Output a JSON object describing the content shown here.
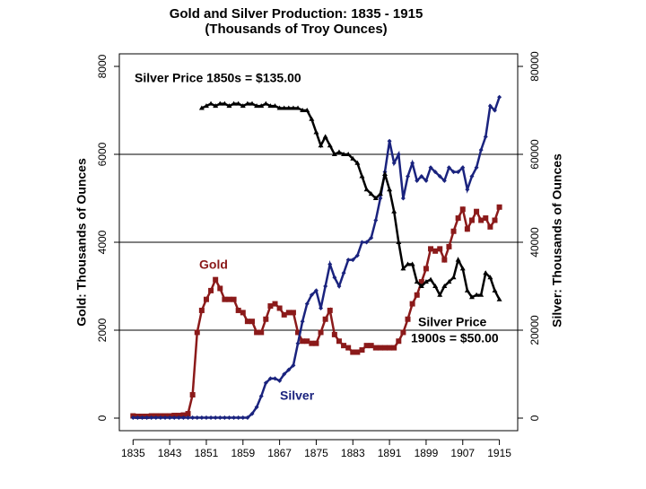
{
  "chart_data": {
    "type": "line",
    "title": "Gold and Silver Production: 1835 - 1915",
    "subtitle": "(Thousands of Troy Ounces)",
    "ylabel": "Gold: Thousands of Ounces",
    "y2label": "Silver: Thousands of Ounces",
    "annotations": [
      "Silver Price 1850s = $135.00",
      "Gold",
      "Silver Price",
      "1900s = $50.00",
      "Silver"
    ],
    "x": [
      1835,
      1836,
      1837,
      1838,
      1839,
      1840,
      1841,
      1842,
      1843,
      1844,
      1845,
      1846,
      1847,
      1848,
      1849,
      1850,
      1851,
      1852,
      1853,
      1854,
      1855,
      1856,
      1857,
      1858,
      1859,
      1860,
      1861,
      1862,
      1863,
      1864,
      1865,
      1866,
      1867,
      1868,
      1869,
      1870,
      1871,
      1872,
      1873,
      1874,
      1875,
      1876,
      1877,
      1878,
      1879,
      1880,
      1881,
      1882,
      1883,
      1884,
      1885,
      1886,
      1887,
      1888,
      1889,
      1890,
      1891,
      1892,
      1893,
      1894,
      1895,
      1896,
      1897,
      1898,
      1899,
      1900,
      1901,
      1902,
      1903,
      1904,
      1905,
      1906,
      1907,
      1908,
      1909,
      1910,
      1911,
      1912,
      1913,
      1914,
      1915
    ],
    "xlim": [
      1832,
      1919
    ],
    "xticks": [
      1835,
      1843,
      1851,
      1859,
      1867,
      1875,
      1883,
      1891,
      1899,
      1907,
      1915
    ],
    "ylim": [
      -286,
      8286
    ],
    "yticks": [
      0,
      2000,
      4000,
      6000,
      8000
    ],
    "y2lim": [
      -2860,
      82860
    ],
    "y2ticks": [
      0,
      20000,
      40000,
      60000,
      80000
    ],
    "grid": true,
    "series": [
      {
        "name": "Gold",
        "color": "#8b1a1a",
        "marker": "square",
        "axis": "y",
        "values": [
          50,
          40,
          40,
          40,
          50,
          50,
          50,
          50,
          50,
          60,
          60,
          70,
          100,
          530,
          1950,
          2450,
          2700,
          2900,
          3150,
          2950,
          2700,
          2700,
          2700,
          2450,
          2400,
          2200,
          2200,
          1950,
          1950,
          2250,
          2550,
          2600,
          2500,
          2350,
          2400,
          2400,
          1950,
          1750,
          1750,
          1700,
          1700,
          1950,
          2250,
          2450,
          1900,
          1750,
          1650,
          1600,
          1500,
          1500,
          1550,
          1650,
          1650,
          1600,
          1600,
          1600,
          1600,
          1600,
          1750,
          1950,
          2250,
          2600,
          2800,
          3100,
          3400,
          3850,
          3800,
          3850,
          3600,
          3900,
          4250,
          4550,
          4750,
          4300,
          4500,
          4700,
          4500,
          4550,
          4350,
          4500,
          4800
        ]
      },
      {
        "name": "Silver",
        "color": "#1a237e",
        "marker": "diamond",
        "axis": "y2",
        "values": [
          100,
          100,
          100,
          100,
          100,
          100,
          100,
          100,
          100,
          100,
          100,
          100,
          100,
          100,
          100,
          100,
          100,
          100,
          100,
          100,
          100,
          100,
          100,
          100,
          100,
          100,
          1000,
          2500,
          5000,
          8000,
          9000,
          9000,
          8500,
          10000,
          11000,
          12000,
          17000,
          22000,
          26000,
          28000,
          29000,
          25000,
          30000,
          35000,
          32000,
          30000,
          33000,
          36000,
          36000,
          37000,
          40000,
          40000,
          41000,
          45000,
          50000,
          56000,
          63000,
          58000,
          60000,
          50000,
          55000,
          58000,
          54000,
          55000,
          54000,
          57000,
          56000,
          55000,
          54000,
          57000,
          56000,
          56000,
          57000,
          52000,
          55000,
          57000,
          61000,
          64000,
          71000,
          70000,
          73000
        ]
      },
      {
        "name": "Silver Price",
        "color": "#000000",
        "marker": "triangle",
        "axis": "y",
        "values": [
          null,
          null,
          null,
          null,
          null,
          null,
          null,
          null,
          null,
          null,
          null,
          null,
          null,
          null,
          null,
          7050,
          7100,
          7150,
          7100,
          7150,
          7150,
          7100,
          7150,
          7150,
          7100,
          7150,
          7150,
          7100,
          7100,
          7150,
          7100,
          7100,
          7050,
          7050,
          7050,
          7050,
          7050,
          7000,
          7000,
          6800,
          6500,
          6200,
          6400,
          6200,
          6000,
          6050,
          6000,
          6000,
          5900,
          5800,
          5500,
          5200,
          5100,
          5000,
          5100,
          5550,
          5200,
          4700,
          4000,
          3400,
          3500,
          3500,
          3100,
          3000,
          3100,
          3150,
          3000,
          2800,
          3000,
          3100,
          3200,
          3600,
          3400,
          2900,
          2750,
          2800,
          2800,
          3300,
          3200,
          2900,
          2700
        ]
      }
    ]
  }
}
